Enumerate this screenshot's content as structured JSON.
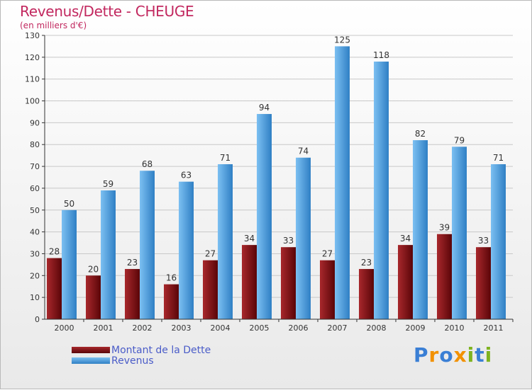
{
  "title": "Revenus/Dette - CHEUGE",
  "subtitle": "(en milliers d'€)",
  "logo": {
    "text": "Proxiti",
    "letters": [
      "P",
      "r",
      "o",
      "x",
      "i",
      "t",
      "i"
    ],
    "colors": [
      "#3a7fd5",
      "#f29100",
      "#3a7fd5",
      "#f29100",
      "#7fb320",
      "#3a7fd5",
      "#7fb320"
    ]
  },
  "chart_data": {
    "type": "bar",
    "categories": [
      "2000",
      "2001",
      "2002",
      "2003",
      "2004",
      "2005",
      "2006",
      "2007",
      "2008",
      "2009",
      "2010",
      "2011"
    ],
    "series": [
      {
        "name": "Montant de la Dette",
        "values": [
          28,
          20,
          23,
          16,
          27,
          34,
          33,
          27,
          23,
          34,
          39,
          33
        ],
        "color": "#7a1014"
      },
      {
        "name": "Revenus",
        "values": [
          50,
          59,
          68,
          63,
          71,
          94,
          74,
          125,
          118,
          82,
          79,
          71
        ],
        "color": "#4a9fe0"
      }
    ],
    "ylim": [
      0,
      130
    ],
    "yticks": [
      0,
      10,
      20,
      30,
      40,
      50,
      60,
      70,
      80,
      90,
      100,
      110,
      120,
      130
    ],
    "grid": true,
    "legend_position": "bottom-left"
  }
}
